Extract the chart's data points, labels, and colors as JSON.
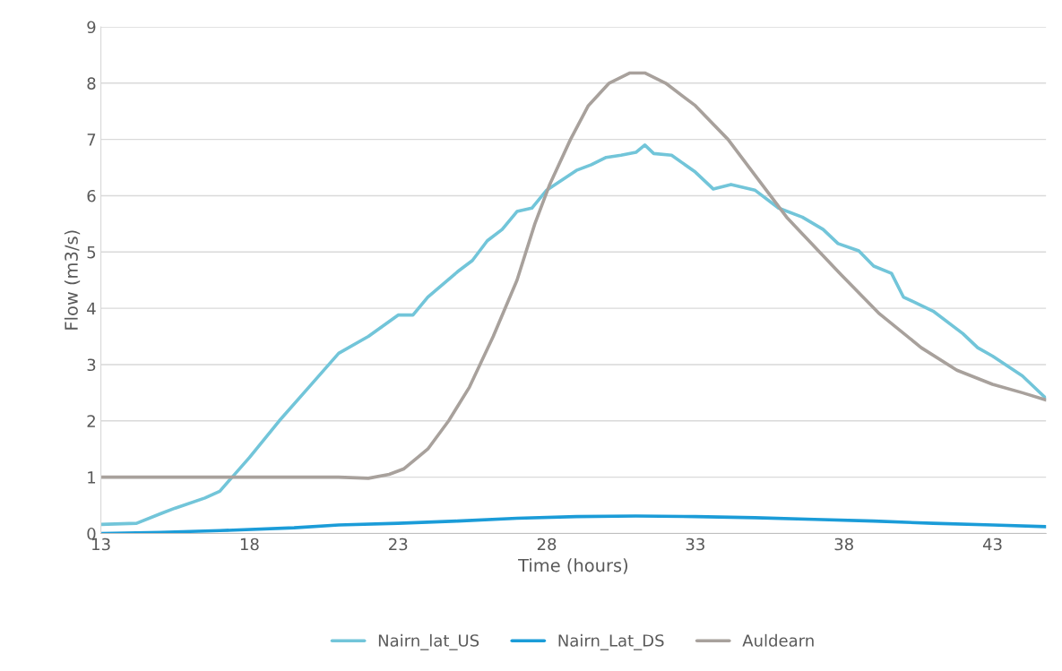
{
  "chart_data": {
    "type": "line",
    "xlabel": "Time (hours)",
    "ylabel": "Flow (m3/s)",
    "xlim": [
      13,
      44.8
    ],
    "xticks": [
      13,
      18,
      23,
      28,
      33,
      38,
      43
    ],
    "ylim": [
      0,
      9
    ],
    "yticks": [
      0,
      1,
      2,
      3,
      4,
      5,
      6,
      7,
      8,
      9
    ],
    "grid": "y",
    "legend": "bottom",
    "line_style": "solid",
    "marker": "none",
    "series": [
      {
        "name": "Nairn_lat_US",
        "color": "#72c5d9",
        "x": [
          13,
          14.2,
          15,
          15.5,
          16.5,
          17,
          18,
          19,
          20,
          21,
          22,
          23,
          23.5,
          24,
          25,
          25.5,
          26,
          26.5,
          27,
          27.5,
          28,
          29,
          29.5,
          30,
          30.5,
          31,
          31.3,
          31.6,
          32.2,
          33,
          33.6,
          34.2,
          35,
          35.8,
          36.6,
          37.3,
          37.8,
          38.5,
          39,
          39.6,
          40,
          41,
          42,
          42.5,
          43,
          44,
          44.8
        ],
        "values": [
          0.16,
          0.18,
          0.35,
          0.45,
          0.63,
          0.75,
          1.35,
          2.0,
          2.6,
          3.2,
          3.5,
          3.88,
          3.88,
          4.2,
          4.65,
          4.85,
          5.2,
          5.4,
          5.72,
          5.78,
          6.1,
          6.45,
          6.55,
          6.68,
          6.72,
          6.77,
          6.9,
          6.75,
          6.72,
          6.42,
          6.12,
          6.2,
          6.1,
          5.78,
          5.62,
          5.4,
          5.15,
          5.02,
          4.75,
          4.62,
          4.2,
          3.95,
          3.55,
          3.3,
          3.15,
          2.8,
          2.4
        ]
      },
      {
        "name": "Nairn_Lat_DS",
        "color": "#1b9cd8",
        "x": [
          13,
          15,
          17,
          19.5,
          21,
          23,
          25,
          27,
          29,
          31,
          33,
          35,
          37,
          39,
          41,
          43,
          44.8
        ],
        "values": [
          0.0,
          0.02,
          0.05,
          0.1,
          0.15,
          0.18,
          0.22,
          0.27,
          0.3,
          0.31,
          0.3,
          0.28,
          0.25,
          0.22,
          0.18,
          0.15,
          0.12
        ]
      },
      {
        "name": "Auldearn",
        "color": "#a8a19c",
        "x": [
          13,
          17,
          21,
          22,
          22.7,
          23.2,
          24,
          24.7,
          25.4,
          26.2,
          27,
          27.6,
          28.1,
          28.8,
          29.4,
          30.1,
          30.8,
          31.3,
          32,
          33,
          34.1,
          35.1,
          36.1,
          37.9,
          39.2,
          40.6,
          41.8,
          43,
          44,
          44.8
        ],
        "values": [
          1.0,
          1.0,
          1.0,
          0.98,
          1.05,
          1.15,
          1.5,
          2.0,
          2.6,
          3.5,
          4.5,
          5.5,
          6.2,
          7.0,
          7.6,
          8.0,
          8.18,
          8.18,
          8.0,
          7.6,
          7.0,
          6.3,
          5.6,
          4.6,
          3.9,
          3.3,
          2.9,
          2.65,
          2.5,
          2.37
        ]
      }
    ]
  }
}
